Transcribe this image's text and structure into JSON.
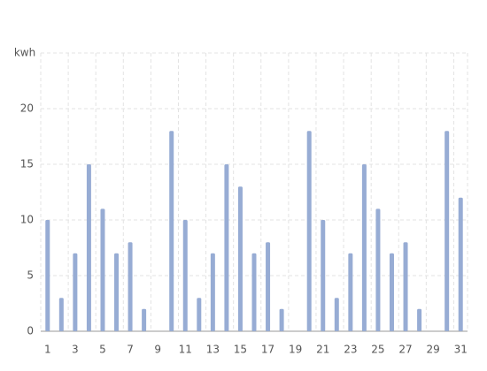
{
  "chart_data": {
    "type": "bar",
    "y_label": "kwh",
    "categories": [
      "1",
      null,
      "3",
      null,
      "5",
      null,
      "7",
      null,
      "9",
      null,
      "11",
      null,
      "13",
      null,
      "15",
      null,
      "17",
      null,
      "19",
      null,
      "21",
      null,
      "23",
      null,
      "25",
      null,
      "27",
      null,
      "29",
      null,
      "31"
    ],
    "values": [
      10,
      3,
      7,
      15,
      11,
      7,
      8,
      2,
      0,
      18,
      10,
      3,
      7,
      15,
      13,
      7,
      8,
      2,
      0,
      18,
      10,
      3,
      7,
      15,
      11,
      7,
      8,
      2,
      0,
      18,
      12
    ],
    "color": "#97acd4",
    "ylim": [
      0,
      25
    ],
    "yticks": [
      0,
      5,
      10,
      15,
      20
    ],
    "grid": true
  }
}
